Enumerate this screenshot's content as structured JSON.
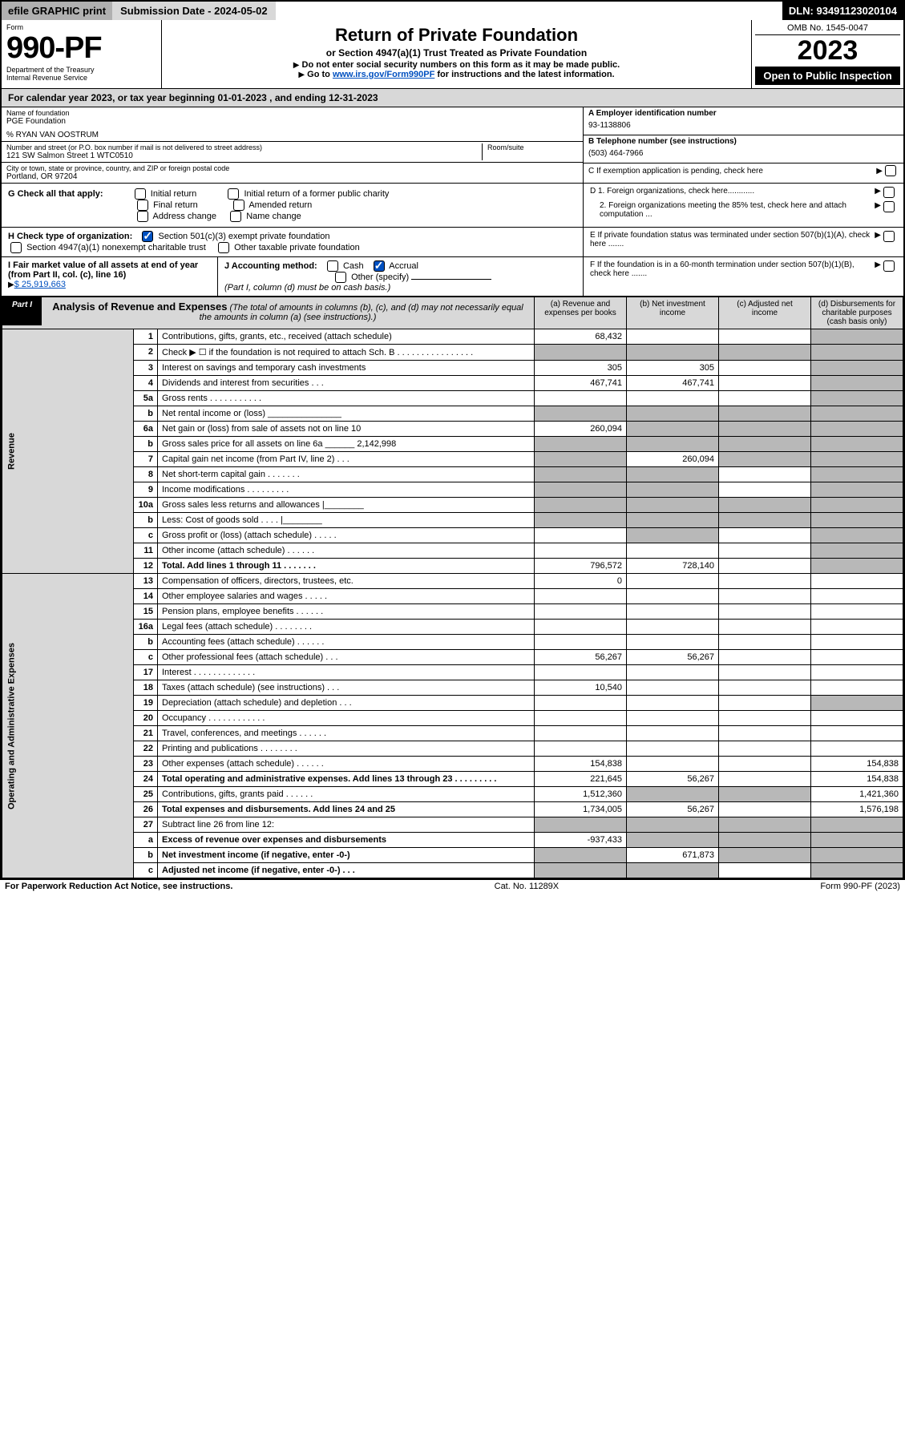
{
  "topbar": {
    "efile": "efile GRAPHIC print",
    "submission": "Submission Date - 2024-05-02",
    "dln_label": "DLN: 93491123020104"
  },
  "header": {
    "form_label": "Form",
    "form_number": "990-PF",
    "dept": "Department of the Treasury",
    "irs": "Internal Revenue Service",
    "title": "Return of Private Foundation",
    "subtitle": "or Section 4947(a)(1) Trust Treated as Private Foundation",
    "instr1": "Do not enter social security numbers on this form as it may be made public.",
    "instr2_pre": "Go to ",
    "instr2_link": "www.irs.gov/Form990PF",
    "instr2_post": " for instructions and the latest information.",
    "omb": "OMB No. 1545-0047",
    "year": "2023",
    "inspection": "Open to Public Inspection"
  },
  "calyear": "For calendar year 2023, or tax year beginning 01-01-2023                         , and ending 12-31-2023",
  "identity": {
    "name_label": "Name of foundation",
    "name": "PGE Foundation",
    "care_of": "% RYAN VAN OOSTRUM",
    "addr_label": "Number and street (or P.O. box number if mail is not delivered to street address)",
    "addr": "121 SW Salmon Street 1 WTC0510",
    "room_label": "Room/suite",
    "city_label": "City or town, state or province, country, and ZIP or foreign postal code",
    "city": "Portland, OR  97204",
    "ein_label": "A Employer identification number",
    "ein": "93-1138806",
    "phone_label": "B Telephone number (see instructions)",
    "phone": "(503) 464-7966",
    "c_label": "C If exemption application is pending, check here",
    "d1": "D 1. Foreign organizations, check here............",
    "d2": "2. Foreign organizations meeting the 85% test, check here and attach computation ...",
    "e_label": "E  If private foundation status was terminated under section 507(b)(1)(A), check here .......",
    "f_label": "F  If the foundation is in a 60-month termination under section 507(b)(1)(B), check here .......",
    "g_label": "G Check all that apply:",
    "g_options": [
      "Initial return",
      "Final return",
      "Address change",
      "Initial return of a former public charity",
      "Amended return",
      "Name change"
    ],
    "h_label": "H Check type of organization:",
    "h_opt1": "Section 501(c)(3) exempt private foundation",
    "h_opt2": "Section 4947(a)(1) nonexempt charitable trust",
    "h_opt3": "Other taxable private foundation",
    "i_label": "I Fair market value of all assets at end of year (from Part II, col. (c), line 16)",
    "i_value": "$  25,919,663",
    "j_label": "J Accounting method:",
    "j_cash": "Cash",
    "j_accrual": "Accrual",
    "j_other": "Other (specify)",
    "j_note": "(Part I, column (d) must be on cash basis.)"
  },
  "part1": {
    "tag": "Part I",
    "title": "Analysis of Revenue and Expenses",
    "note": "(The total of amounts in columns (b), (c), and (d) may not necessarily equal the amounts in column (a) (see instructions).)",
    "col_a": "(a) Revenue and expenses per books",
    "col_b": "(b) Net investment income",
    "col_c": "(c) Adjusted net income",
    "col_d": "(d) Disbursements for charitable purposes (cash basis only)",
    "side_revenue": "Revenue",
    "side_expenses": "Operating and Administrative Expenses"
  },
  "rows": [
    {
      "n": "1",
      "t": "Contributions, gifts, grants, etc., received (attach schedule)",
      "a": "68,432",
      "b": "",
      "c": "",
      "d": "",
      "dshade": true
    },
    {
      "n": "2",
      "t": "Check ▶ ☐ if the foundation is not required to attach Sch. B      .   .   .   .   .   .   .   .   .   .   .   .   .   .   .   .",
      "a": "",
      "b": "",
      "c": "",
      "d": "",
      "dshade": true,
      "ashade": true,
      "bshade": true,
      "cshade": true
    },
    {
      "n": "3",
      "t": "Interest on savings and temporary cash investments",
      "a": "305",
      "b": "305",
      "c": "",
      "d": "",
      "dshade": true
    },
    {
      "n": "4",
      "t": "Dividends and interest from securities     .    .    .",
      "a": "467,741",
      "b": "467,741",
      "c": "",
      "d": "",
      "dshade": true
    },
    {
      "n": "5a",
      "t": "Gross rents        .    .    .    .    .    .    .    .    .    .    .",
      "a": "",
      "b": "",
      "c": "",
      "d": "",
      "dshade": true
    },
    {
      "n": "b",
      "t": "Net rental income or (loss) _______________",
      "a": "",
      "b": "",
      "c": "",
      "d": "",
      "dshade": true,
      "ashade": true,
      "bshade": true,
      "cshade": true
    },
    {
      "n": "6a",
      "t": "Net gain or (loss) from sale of assets not on line 10",
      "a": "260,094",
      "b": "",
      "c": "",
      "d": "",
      "dshade": true,
      "bshade": true,
      "cshade": true
    },
    {
      "n": "b",
      "t": "Gross sales price for all assets on line 6a ______ 2,142,998",
      "a": "",
      "b": "",
      "c": "",
      "d": "",
      "dshade": true,
      "ashade": true,
      "bshade": true,
      "cshade": true
    },
    {
      "n": "7",
      "t": "Capital gain net income (from Part IV, line 2)    .    .    .",
      "a": "",
      "b": "260,094",
      "c": "",
      "d": "",
      "dshade": true,
      "ashade": true,
      "cshade": true
    },
    {
      "n": "8",
      "t": "Net short-term capital gain   .    .    .    .    .    .    .",
      "a": "",
      "b": "",
      "c": "",
      "d": "",
      "dshade": true,
      "ashade": true,
      "bshade": true
    },
    {
      "n": "9",
      "t": "Income modifications  .    .    .    .    .    .    .    .    .",
      "a": "",
      "b": "",
      "c": "",
      "d": "",
      "dshade": true,
      "ashade": true,
      "bshade": true
    },
    {
      "n": "10a",
      "t": "Gross sales less returns and allowances  |________",
      "a": "",
      "b": "",
      "c": "",
      "d": "",
      "dshade": true,
      "ashade": true,
      "bshade": true,
      "cshade": true
    },
    {
      "n": "b",
      "t": "Less: Cost of goods sold     .    .    .    .  |________",
      "a": "",
      "b": "",
      "c": "",
      "d": "",
      "dshade": true,
      "ashade": true,
      "bshade": true,
      "cshade": true
    },
    {
      "n": "c",
      "t": "Gross profit or (loss) (attach schedule)     .    .    .    .    .",
      "a": "",
      "b": "",
      "c": "",
      "d": "",
      "dshade": true,
      "bshade": true
    },
    {
      "n": "11",
      "t": "Other income (attach schedule)     .    .    .    .    .    .",
      "a": "",
      "b": "",
      "c": "",
      "d": "",
      "dshade": true
    },
    {
      "n": "12",
      "t": "Total. Add lines 1 through 11    .    .    .    .    .    .    .",
      "a": "796,572",
      "b": "728,140",
      "c": "",
      "d": "",
      "bold": true,
      "dshade": true
    },
    {
      "n": "13",
      "t": "Compensation of officers, directors, trustees, etc.",
      "a": "0",
      "b": "",
      "c": "",
      "d": ""
    },
    {
      "n": "14",
      "t": "Other employee salaries and wages    .    .    .    .    .",
      "a": "",
      "b": "",
      "c": "",
      "d": ""
    },
    {
      "n": "15",
      "t": "Pension plans, employee benefits  .    .    .    .    .    .",
      "a": "",
      "b": "",
      "c": "",
      "d": ""
    },
    {
      "n": "16a",
      "t": "Legal fees (attach schedule)  .    .    .    .    .    .    .    .",
      "a": "",
      "b": "",
      "c": "",
      "d": ""
    },
    {
      "n": "b",
      "t": "Accounting fees (attach schedule)  .    .    .    .    .    .",
      "a": "",
      "b": "",
      "c": "",
      "d": ""
    },
    {
      "n": "c",
      "t": "Other professional fees (attach schedule)     .    .    .",
      "a": "56,267",
      "b": "56,267",
      "c": "",
      "d": ""
    },
    {
      "n": "17",
      "t": "Interest  .    .    .    .    .    .    .    .    .    .    .    .    .",
      "a": "",
      "b": "",
      "c": "",
      "d": ""
    },
    {
      "n": "18",
      "t": "Taxes (attach schedule) (see instructions)     .    .    .",
      "a": "10,540",
      "b": "",
      "c": "",
      "d": ""
    },
    {
      "n": "19",
      "t": "Depreciation (attach schedule) and depletion    .    .    .",
      "a": "",
      "b": "",
      "c": "",
      "d": "",
      "dshade": true
    },
    {
      "n": "20",
      "t": "Occupancy  .    .    .    .    .    .    .    .    .    .    .    .",
      "a": "",
      "b": "",
      "c": "",
      "d": ""
    },
    {
      "n": "21",
      "t": "Travel, conferences, and meetings  .    .    .    .    .    .",
      "a": "",
      "b": "",
      "c": "",
      "d": ""
    },
    {
      "n": "22",
      "t": "Printing and publications  .    .    .    .    .    .    .    .",
      "a": "",
      "b": "",
      "c": "",
      "d": ""
    },
    {
      "n": "23",
      "t": "Other expenses (attach schedule)  .    .    .    .    .    .",
      "a": "154,838",
      "b": "",
      "c": "",
      "d": "154,838"
    },
    {
      "n": "24",
      "t": "Total operating and administrative expenses. Add lines 13 through 23    .    .    .    .    .    .    .    .    .",
      "a": "221,645",
      "b": "56,267",
      "c": "",
      "d": "154,838",
      "bold": true
    },
    {
      "n": "25",
      "t": "Contributions, gifts, grants paid     .    .    .    .    .    .",
      "a": "1,512,360",
      "b": "",
      "c": "",
      "d": "1,421,360",
      "bshade": true,
      "cshade": true
    },
    {
      "n": "26",
      "t": "Total expenses and disbursements. Add lines 24 and 25",
      "a": "1,734,005",
      "b": "56,267",
      "c": "",
      "d": "1,576,198",
      "bold": true
    },
    {
      "n": "27",
      "t": "Subtract line 26 from line 12:",
      "a": "",
      "b": "",
      "c": "",
      "d": "",
      "ashade": true,
      "bshade": true,
      "cshade": true,
      "dshade": true
    },
    {
      "n": "a",
      "t": "Excess of revenue over expenses and disbursements",
      "a": "-937,433",
      "b": "",
      "c": "",
      "d": "",
      "bold": true,
      "bshade": true,
      "cshade": true,
      "dshade": true
    },
    {
      "n": "b",
      "t": "Net investment income (if negative, enter -0-)",
      "a": "",
      "b": "671,873",
      "c": "",
      "d": "",
      "bold": true,
      "ashade": true,
      "cshade": true,
      "dshade": true
    },
    {
      "n": "c",
      "t": "Adjusted net income (if negative, enter -0-)    .    .    .",
      "a": "",
      "b": "",
      "c": "",
      "d": "",
      "bold": true,
      "ashade": true,
      "bshade": true,
      "dshade": true
    }
  ],
  "footer": {
    "left": "For Paperwork Reduction Act Notice, see instructions.",
    "mid": "Cat. No. 11289X",
    "right": "Form 990-PF (2023)"
  },
  "colors": {
    "shade": "#b8b8b8",
    "grayhdr": "#d8d8d8",
    "link": "#0050c0"
  }
}
